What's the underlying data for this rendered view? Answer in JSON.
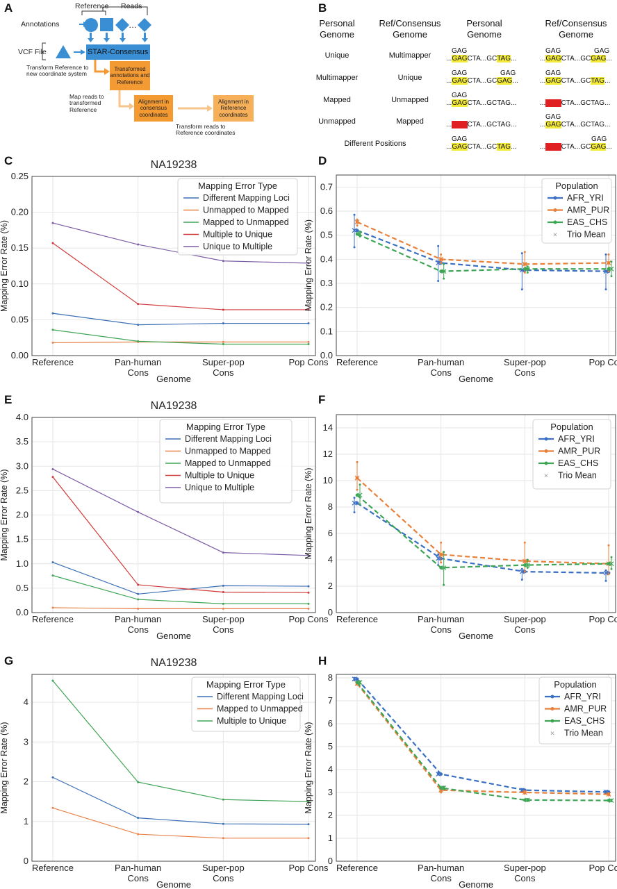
{
  "panel_labels": {
    "A": "A",
    "B": "B",
    "C": "C",
    "D": "D",
    "E": "E",
    "F": "F",
    "G": "G",
    "H": "H"
  },
  "diagram_a": {
    "reference": "Reference",
    "reads": "Reads",
    "annotations": "Annotations",
    "vcf_file": "VCF File",
    "star_consensus": "STAR-Consensus",
    "transform_ref_note": "Transform Reference to new coordinate system",
    "transformed_box": "Transformed annotations and Reference",
    "map_reads_note": "Map reads to transformed Reference",
    "consensus_box": "Alignment in consensus coordinates",
    "reference_box": "Alignment in Reference coordinates",
    "transform_reads_note": "Transform reads to Reference coordinates",
    "ellipsis": "…",
    "colors": {
      "blue": "#3a8fd4",
      "orange": "#f39a33",
      "light_orange": "#f7c48a"
    }
  },
  "table_b": {
    "headers": [
      "Personal Genome",
      "Ref/Consensus Genome",
      "Personal Genome",
      "Ref/Consensus Genome"
    ],
    "rows": [
      {
        "personal": "Unique",
        "ref": "Multimapper"
      },
      {
        "personal": "Multimapper",
        "ref": "Unique"
      },
      {
        "personal": "Mapped",
        "ref": "Unmapped"
      },
      {
        "personal": "Unmapped",
        "ref": "Mapped"
      },
      {
        "personal": "Different Positions",
        "ref": ""
      }
    ],
    "seq": {
      "gag": "GAG",
      "dots": "...",
      "cta": "CTA",
      "gc": "GC",
      "tag": "TAG",
      "ag": "AG",
      "gctag": "GCTAG"
    }
  },
  "chart_data": [
    {
      "panel": "C",
      "type": "line",
      "title": "NA19238",
      "xlabel": "Genome",
      "ylabel": "Mapping Error Rate (%)",
      "categories": [
        "Reference",
        "Pan-human Cons",
        "Super-pop Cons",
        "Pop Cons"
      ],
      "ylim": [
        0,
        0.25
      ],
      "yticks": [
        0,
        0.05,
        0.1,
        0.15,
        0.2,
        0.25
      ],
      "ytick_labels": [
        "0.00",
        "0.05",
        "0.10",
        "0.15",
        "0.20",
        "0.25"
      ],
      "legend_title": "Mapping Error Type",
      "legend_position": "top-right",
      "grid": true,
      "series": [
        {
          "name": "Different Mapping Loci",
          "color": "#3b6fb5",
          "values": [
            0.059,
            0.043,
            0.045,
            0.045
          ]
        },
        {
          "name": "Unmapped to Mapped",
          "color": "#e8834a",
          "values": [
            0.018,
            0.019,
            0.019,
            0.019
          ]
        },
        {
          "name": "Mapped to Unmapped",
          "color": "#3ea555",
          "values": [
            0.036,
            0.02,
            0.016,
            0.016
          ]
        },
        {
          "name": "Multiple to Unique",
          "color": "#d03a3a",
          "values": [
            0.157,
            0.072,
            0.064,
            0.064
          ]
        },
        {
          "name": "Unique to Multiple",
          "color": "#7b5ea7",
          "values": [
            0.185,
            0.155,
            0.132,
            0.129
          ]
        }
      ]
    },
    {
      "panel": "D",
      "type": "line",
      "xlabel": "Genome",
      "ylabel": "Mapping Error Rate (%)",
      "categories": [
        "Reference",
        "Pan-human Cons",
        "Super-pop Cons",
        "Pop Cons"
      ],
      "ylim": [
        0,
        0.75
      ],
      "yticks": [
        0,
        0.1,
        0.2,
        0.3,
        0.4,
        0.5,
        0.6,
        0.7
      ],
      "ytick_labels": [
        "0.0",
        "0.1",
        "0.2",
        "0.3",
        "0.4",
        "0.5",
        "0.6",
        "0.7"
      ],
      "legend_title": "Population",
      "legend_position": "top-right",
      "grid": true,
      "trio_mean_label": "Trio Mean",
      "series": [
        {
          "name": "AFR_YRI",
          "color": "#3a6fc4",
          "values": [
            0.52,
            0.385,
            0.355,
            0.35
          ],
          "err_low": [
            0.45,
            0.31,
            0.275,
            0.275
          ],
          "err_high": [
            0.585,
            0.455,
            0.425,
            0.42
          ]
        },
        {
          "name": "AMR_PUR",
          "color": "#e8803a",
          "values": [
            0.555,
            0.4,
            0.38,
            0.385
          ],
          "err_low": [
            0.54,
            0.385,
            0.345,
            0.35
          ],
          "err_high": [
            0.565,
            0.42,
            0.43,
            0.42
          ]
        },
        {
          "name": "EAS_CHS",
          "color": "#3ea555",
          "values": [
            0.505,
            0.35,
            0.36,
            0.36
          ],
          "err_low": [
            0.495,
            0.32,
            0.345,
            0.33
          ],
          "err_high": [
            0.515,
            0.38,
            0.37,
            0.39
          ]
        }
      ]
    },
    {
      "panel": "E",
      "type": "line",
      "title": "NA19238",
      "xlabel": "Genome",
      "ylabel": "Mapping Error Rate (%)",
      "categories": [
        "Reference",
        "Pan-human Cons",
        "Super-pop Cons",
        "Pop Cons"
      ],
      "ylim": [
        0,
        4.0
      ],
      "yticks": [
        0,
        0.5,
        1,
        1.5,
        2,
        2.5,
        3,
        3.5,
        4
      ],
      "ytick_labels": [
        "0.0",
        "0.5",
        "1.0",
        "1.5",
        "2.0",
        "2.5",
        "3.0",
        "3.5",
        "4.0"
      ],
      "legend_title": "Mapping Error Type",
      "legend_position": "top-right",
      "grid": true,
      "series": [
        {
          "name": "Different Mapping Loci",
          "color": "#3b6fb5",
          "values": [
            1.03,
            0.38,
            0.55,
            0.54
          ]
        },
        {
          "name": "Unmapped to Mapped",
          "color": "#e8834a",
          "values": [
            0.1,
            0.08,
            0.08,
            0.08
          ]
        },
        {
          "name": "Mapped to Unmapped",
          "color": "#3ea555",
          "values": [
            0.76,
            0.27,
            0.18,
            0.18
          ]
        },
        {
          "name": "Multiple to Unique",
          "color": "#d03a3a",
          "values": [
            2.78,
            0.57,
            0.42,
            0.41
          ]
        },
        {
          "name": "Unique to Multiple",
          "color": "#7b5ea7",
          "values": [
            2.94,
            2.06,
            1.23,
            1.17
          ]
        }
      ]
    },
    {
      "panel": "F",
      "type": "line",
      "xlabel": "Genome",
      "ylabel": "Mapping Error Rate (%)",
      "categories": [
        "Reference",
        "Pan-human Cons",
        "Super-pop Cons",
        "Pop Cons"
      ],
      "ylim": [
        0,
        15
      ],
      "yticks": [
        0,
        2,
        4,
        6,
        8,
        10,
        12,
        14
      ],
      "ytick_labels": [
        "0",
        "2",
        "4",
        "6",
        "8",
        "10",
        "12",
        "14"
      ],
      "legend_title": "Population",
      "legend_position": "top-right",
      "grid": true,
      "trio_mean_label": "Trio Mean",
      "series": [
        {
          "name": "AFR_YRI",
          "color": "#3a6fc4",
          "values": [
            8.3,
            4.1,
            3.1,
            3.0
          ],
          "err_low": [
            7.6,
            3.6,
            2.5,
            2.4
          ],
          "err_high": [
            8.7,
            4.4,
            3.3,
            3.2
          ]
        },
        {
          "name": "AMR_PUR",
          "color": "#e8803a",
          "values": [
            10.2,
            4.4,
            3.9,
            3.7
          ],
          "err_low": [
            9.3,
            3.8,
            3.1,
            2.9
          ],
          "err_high": [
            11.4,
            5.3,
            5.3,
            5.1
          ]
        },
        {
          "name": "EAS_CHS",
          "color": "#3ea555",
          "values": [
            8.9,
            3.4,
            3.6,
            3.7
          ],
          "err_low": [
            8.2,
            2.1,
            3.4,
            3.3
          ],
          "err_high": [
            9.7,
            4.6,
            4.0,
            4.2
          ]
        }
      ]
    },
    {
      "panel": "G",
      "type": "line",
      "title": "NA19238",
      "xlabel": "Genome",
      "ylabel": "Mapping Error Rate (%)",
      "categories": [
        "Reference",
        "Pan-human Cons",
        "Super-pop Cons",
        "Pop Cons"
      ],
      "ylim": [
        0,
        4.7
      ],
      "yticks": [
        0,
        1,
        2,
        3,
        4
      ],
      "ytick_labels": [
        "0",
        "1",
        "2",
        "3",
        "4"
      ],
      "legend_title": "Mapping Error Type",
      "legend_position": "top-right",
      "grid": true,
      "series": [
        {
          "name": "Different Mapping Loci",
          "color": "#3b6fb5",
          "values": [
            2.11,
            1.09,
            0.94,
            0.93
          ]
        },
        {
          "name": "Mapped to Unmapped",
          "color": "#e8834a",
          "values": [
            1.34,
            0.68,
            0.58,
            0.58
          ]
        },
        {
          "name": "Multiple to Unique",
          "color": "#3ea555",
          "values": [
            4.54,
            1.99,
            1.55,
            1.5
          ]
        }
      ]
    },
    {
      "panel": "H",
      "type": "line",
      "xlabel": "Genome",
      "ylabel": "Mapping Error Rate (%)",
      "categories": [
        "Reference",
        "Pan-human Cons",
        "Super-pop Cons",
        "Pop Cons"
      ],
      "ylim": [
        0,
        8.15
      ],
      "yticks": [
        0,
        1,
        2,
        3,
        4,
        5,
        6,
        7,
        8
      ],
      "ytick_labels": [
        "0",
        "1",
        "2",
        "3",
        "4",
        "5",
        "6",
        "7",
        "8"
      ],
      "legend_title": "Population",
      "legend_position": "top-right",
      "grid": true,
      "trio_mean_label": "Trio Mean",
      "series": [
        {
          "name": "AFR_YRI",
          "color": "#3a6fc4",
          "values": [
            7.95,
            3.8,
            3.1,
            3.02
          ],
          "err_low": [
            7.9,
            3.78,
            3.05,
            2.98
          ],
          "err_high": [
            8.0,
            3.85,
            3.15,
            3.06
          ]
        },
        {
          "name": "AMR_PUR",
          "color": "#e8803a",
          "values": [
            7.75,
            3.1,
            3.0,
            2.92
          ],
          "err_low": [
            7.7,
            3.0,
            2.95,
            2.88
          ],
          "err_high": [
            7.8,
            3.2,
            3.05,
            2.96
          ]
        },
        {
          "name": "EAS_CHS",
          "color": "#3ea555",
          "values": [
            7.8,
            3.2,
            2.67,
            2.65
          ],
          "err_low": [
            7.75,
            3.15,
            2.63,
            2.62
          ],
          "err_high": [
            7.85,
            3.25,
            2.71,
            2.68
          ]
        }
      ]
    }
  ]
}
